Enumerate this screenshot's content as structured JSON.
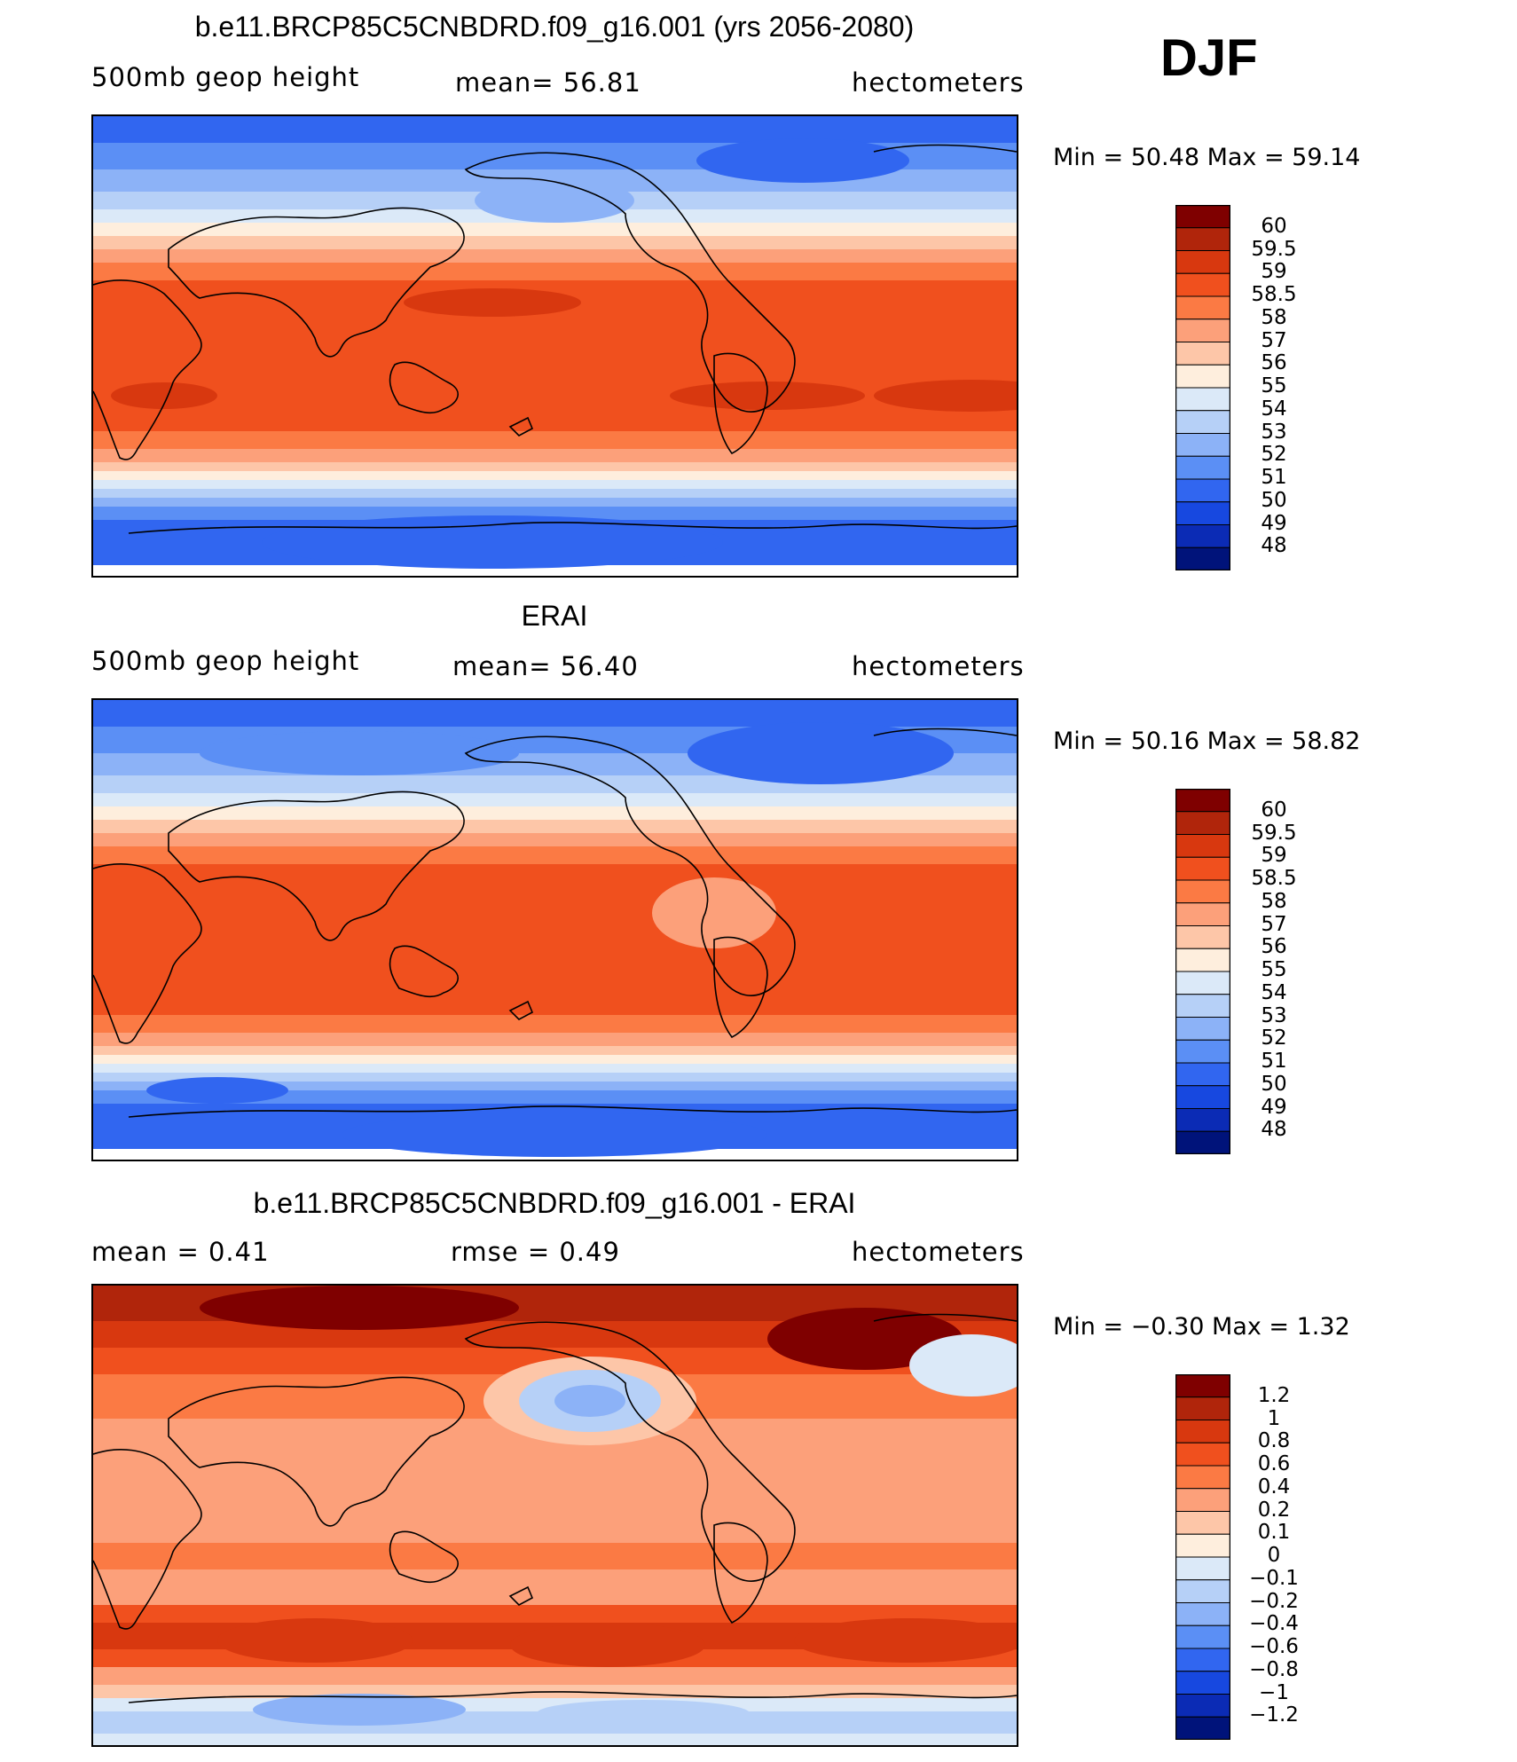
{
  "season_label": "DJF",
  "chart_data": [
    {
      "type": "heatmap",
      "title": "b.e11.BRCP85C5CNBDRD.f09_g16.001 (yrs 2056-2080)",
      "subtitle_left": "500mb geop height",
      "subtitle_center": "mean=  56.81",
      "subtitle_right": "hectometers",
      "stats_text": "Min =   50.48  Max =   59.14",
      "mean": 56.81,
      "min": 50.48,
      "max": 59.14,
      "colorbar": {
        "labels": [
          "60",
          "59.5",
          "59",
          "58.5",
          "58",
          "57",
          "56",
          "55",
          "54",
          "53",
          "52",
          "51",
          "50",
          "49",
          "48"
        ],
        "colors": [
          "#7f0000",
          "#b0250b",
          "#d8380f",
          "#f0501e",
          "#fb7a44",
          "#fca07a",
          "#fdc6a8",
          "#feeedd",
          "#dbe9f8",
          "#b6d0f7",
          "#8cb2f7",
          "#5b8ff5",
          "#3166f0",
          "#1748e0",
          "#0b2bb5",
          "#00137a"
        ]
      }
    },
    {
      "type": "heatmap",
      "title": "ERAI",
      "subtitle_left": "500mb geop height",
      "subtitle_center": "mean=  56.40",
      "subtitle_right": "hectometers",
      "stats_text": "Min =   50.16  Max =   58.82",
      "mean": 56.4,
      "min": 50.16,
      "max": 58.82,
      "colorbar": {
        "labels": [
          "60",
          "59.5",
          "59",
          "58.5",
          "58",
          "57",
          "56",
          "55",
          "54",
          "53",
          "52",
          "51",
          "50",
          "49",
          "48"
        ],
        "colors": [
          "#7f0000",
          "#b0250b",
          "#d8380f",
          "#f0501e",
          "#fb7a44",
          "#fca07a",
          "#fdc6a8",
          "#feeedd",
          "#dbe9f8",
          "#b6d0f7",
          "#8cb2f7",
          "#5b8ff5",
          "#3166f0",
          "#1748e0",
          "#0b2bb5",
          "#00137a"
        ]
      }
    },
    {
      "type": "heatmap",
      "title": "b.e11.BRCP85C5CNBDRD.f09_g16.001 - ERAI",
      "subtitle_left": "mean =    0.41",
      "subtitle_center": "rmse =    0.49",
      "subtitle_right": "hectometers",
      "stats_text": "Min =   −0.30  Max =    1.32",
      "mean": 0.41,
      "rmse": 0.49,
      "min": -0.3,
      "max": 1.32,
      "colorbar": {
        "labels": [
          "1.2",
          "1",
          "0.8",
          "0.6",
          "0.4",
          "0.2",
          "0.1",
          "0",
          "−0.1",
          "−0.2",
          "−0.4",
          "−0.6",
          "−0.8",
          "−1",
          "−1.2"
        ],
        "colors": [
          "#7f0000",
          "#b0250b",
          "#d8380f",
          "#f0501e",
          "#fb7a44",
          "#fca07a",
          "#fdc6a8",
          "#feeedd",
          "#dbe9f8",
          "#b6d0f7",
          "#8cb2f7",
          "#5b8ff5",
          "#3166f0",
          "#1748e0",
          "#0b2bb5",
          "#00137a"
        ]
      }
    }
  ]
}
